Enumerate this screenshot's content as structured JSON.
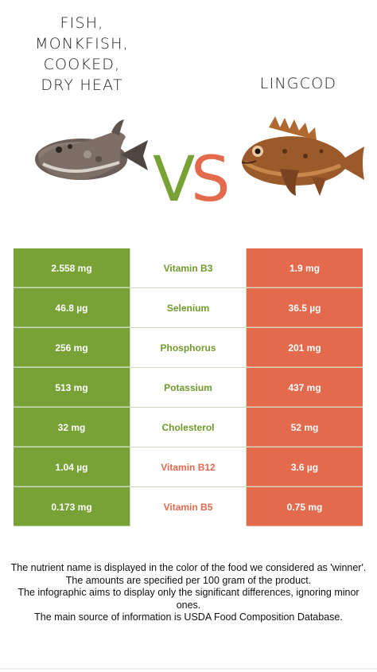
{
  "left_food": {
    "title": "FISH,\nMONKFISH,\nCOOKED,\nDRY HEAT",
    "lines": [
      "FISH,",
      "MONKFISH,",
      "COOKED,",
      "DRY HEAT"
    ],
    "color": "#78a236"
  },
  "right_food": {
    "title": "LINGCOD",
    "color": "#e36a4c"
  },
  "vs": {
    "v": "V",
    "s": "S"
  },
  "rows": [
    {
      "left": "2.558 mg",
      "nutrient": "Vitamin B3",
      "right": "1.9 mg",
      "winner": "left"
    },
    {
      "left": "46.8 µg",
      "nutrient": "Selenium",
      "right": "36.5 µg",
      "winner": "left"
    },
    {
      "left": "256 mg",
      "nutrient": "Phosphorus",
      "right": "201 mg",
      "winner": "left"
    },
    {
      "left": "513 mg",
      "nutrient": "Potassium",
      "right": "437 mg",
      "winner": "left"
    },
    {
      "left": "32 mg",
      "nutrient": "Cholesterol",
      "right": "52 mg",
      "winner": "left"
    },
    {
      "left": "1.04 µg",
      "nutrient": "Vitamin B12",
      "right": "3.6 µg",
      "winner": "right"
    },
    {
      "left": "0.173 mg",
      "nutrient": "Vitamin B5",
      "right": "0.75 mg",
      "winner": "right"
    }
  ],
  "footer": [
    "The nutrient name is displayed in the color of the food we considered as 'winner'.",
    "The amounts are specified per 100 gram of the product.",
    "The infographic aims to display only the significant differences, ignoring minor ones.",
    "The main source of information is USDA Food Composition Database."
  ]
}
